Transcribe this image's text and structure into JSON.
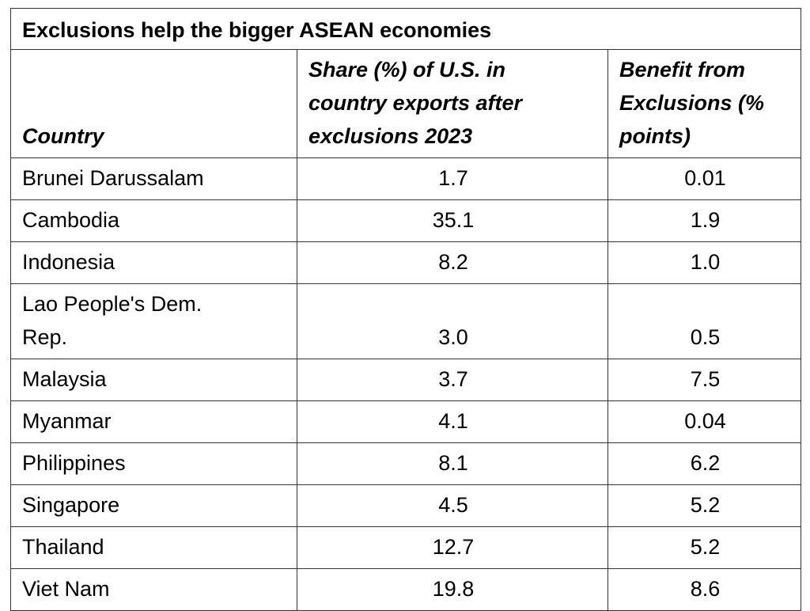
{
  "table": {
    "title": "Exclusions help the bigger ASEAN economies",
    "headers": [
      "Country",
      "Share (%) of U.S. in country exports after exclusions 2023",
      "Benefit from Exclusions (% points)"
    ],
    "rows": [
      [
        "Brunei Darussalam",
        "1.7",
        "0.01"
      ],
      [
        "Cambodia",
        "35.1",
        "1.9"
      ],
      [
        "Indonesia",
        "8.2",
        "1.0"
      ],
      [
        "Lao People's Dem. Rep.",
        "3.0",
        "0.5"
      ],
      [
        "Malaysia",
        "3.7",
        "7.5"
      ],
      [
        "Myanmar",
        "4.1",
        "0.04"
      ],
      [
        "Philippines",
        "8.1",
        "6.2"
      ],
      [
        "Singapore",
        "4.5",
        "5.2"
      ],
      [
        "Thailand",
        "12.7",
        "5.2"
      ],
      [
        "Viet Nam",
        "19.8",
        "8.6"
      ]
    ]
  }
}
